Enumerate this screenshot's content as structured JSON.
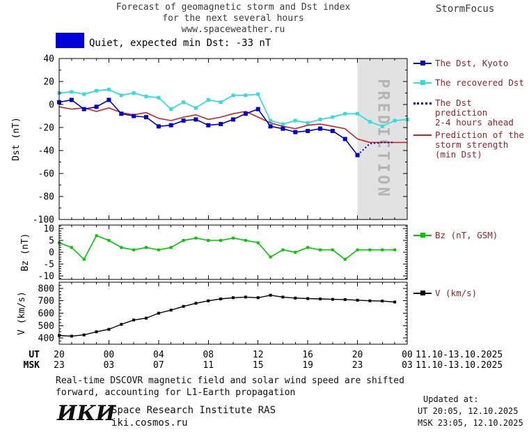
{
  "header": {
    "title_line1": "Forecast of geomagnetic storm and Dst index",
    "title_line2": "for the next several hours",
    "title_line3": "www.spaceweather.ru",
    "brand": "StormFocus"
  },
  "status": {
    "swatch_color": "#0000dd",
    "label": "Quiet, expected min Dst: -33 nT"
  },
  "chart_data": {
    "type": "line",
    "colors": {
      "band": "#e2e2e2",
      "band_text": "#b4b4b4",
      "axis": "#000000"
    },
    "x_axis": {
      "range": [
        0,
        28
      ],
      "ticks": [
        0,
        4,
        8,
        12,
        16,
        20,
        24,
        28
      ],
      "rows": [
        {
          "label": "UT",
          "values": [
            "20",
            "00",
            "04",
            "08",
            "12",
            "16",
            "20",
            "00"
          ],
          "date_range": "11.10-13.10.2025"
        },
        {
          "label": "MSK",
          "values": [
            "23",
            "03",
            "07",
            "11",
            "15",
            "19",
            "23",
            "03"
          ],
          "date_range": "11.10-13.10.2025"
        }
      ]
    },
    "panels": [
      {
        "ylabel": "Dst (nT)",
        "ylim": [
          -100,
          40
        ],
        "yticks": [
          40,
          20,
          0,
          -20,
          -40,
          -60,
          -80,
          -100
        ],
        "yminor": 10,
        "prediction_band": {
          "x": [
            24,
            28
          ],
          "label": "PREDICTION"
        },
        "series": [
          {
            "name": "The recovered Dst",
            "color": "#33dddd",
            "width": 1.8,
            "marker": "square",
            "marker_size": 5,
            "x": [
              0,
              1,
              2,
              3,
              4,
              5,
              6,
              7,
              8,
              9,
              10,
              11,
              12,
              13,
              14,
              15,
              16,
              17,
              18,
              19,
              20,
              21,
              22,
              23,
              24,
              25,
              26,
              27,
              28
            ],
            "y": [
              10,
              11,
              9,
              12,
              13,
              8,
              10,
              7,
              6,
              -4,
              2,
              -3,
              4,
              2,
              8,
              8,
              9,
              -14,
              -17,
              -14,
              -16,
              -13,
              -11,
              -8,
              -8,
              -15,
              -19,
              -14,
              -13
            ]
          },
          {
            "name": "Prediction of the storm strength (min Dst)",
            "color": "#cc2222",
            "width": 1.6,
            "x": [
              0,
              1,
              2,
              3,
              4,
              5,
              6,
              7,
              8,
              9,
              10,
              11,
              12,
              13,
              14,
              15,
              16,
              17,
              18,
              19,
              20,
              21,
              22,
              23,
              24,
              25,
              26,
              27,
              28
            ],
            "y": [
              -2,
              -4,
              -3,
              -6,
              -3,
              -7,
              -9,
              -7,
              -12,
              -14,
              -11,
              -9,
              -13,
              -11,
              -8,
              -6,
              -11,
              -16,
              -19,
              -21,
              -18,
              -17,
              -19,
              -21,
              -30,
              -33,
              -33,
              -33,
              -33
            ]
          },
          {
            "name": "The Dst, Kyoto",
            "color": "#0000cc",
            "width": 1.6,
            "marker": "square",
            "marker_size": 6,
            "x": [
              0,
              1,
              2,
              3,
              4,
              5,
              6,
              7,
              8,
              9,
              10,
              11,
              12,
              13,
              14,
              15,
              16,
              17,
              18,
              19,
              20,
              21,
              22,
              23,
              24
            ],
            "y": [
              2,
              4,
              -4,
              -2,
              4,
              -8,
              -10,
              -11,
              -19,
              -18,
              -14,
              -13,
              -18,
              -17,
              -13,
              -8,
              -4,
              -19,
              -21,
              -24,
              -23,
              -21,
              -23,
              -30,
              -44
            ]
          },
          {
            "name": "The Dst prediction 2-4 hours ahead",
            "color": "#0000cc",
            "line": "dotted",
            "x": [
              24,
              25,
              26,
              27
            ],
            "y": [
              -44,
              -34,
              -33,
              -33
            ]
          }
        ]
      },
      {
        "ylabel": "Bz (nT)",
        "ylim": [
          -11.5,
          11.5
        ],
        "yticks": [
          10,
          5,
          0,
          -5,
          -10
        ],
        "yminor": 1,
        "series": [
          {
            "name": "Bz (nT, GSM)",
            "color": "#00c800",
            "width": 1.6,
            "marker": "square",
            "marker_size": 4,
            "x": [
              0,
              1,
              2,
              3,
              4,
              5,
              6,
              7,
              8,
              9,
              10,
              11,
              12,
              13,
              14,
              15,
              16,
              17,
              18,
              19,
              20,
              21,
              22,
              23,
              24,
              25,
              26,
              27
            ],
            "y": [
              4,
              2,
              -3,
              7,
              5,
              2,
              1,
              2,
              1,
              2,
              5,
              6,
              5,
              5,
              6,
              5,
              4,
              -2,
              1,
              0,
              2,
              1,
              1,
              -3,
              1,
              1,
              1,
              1
            ]
          }
        ]
      },
      {
        "ylabel": "V (km/s)",
        "ylim": [
          350,
          850
        ],
        "yticks": [
          800,
          700,
          600,
          500,
          400
        ],
        "yminor": 25,
        "series": [
          {
            "name": "V (km/s)",
            "color": "#000000",
            "width": 1.4,
            "marker": "square",
            "marker_size": 4,
            "x": [
              0,
              1,
              2,
              3,
              4,
              5,
              6,
              7,
              8,
              9,
              10,
              11,
              12,
              13,
              14,
              15,
              16,
              17,
              18,
              19,
              20,
              21,
              22,
              23,
              24,
              25,
              26,
              27
            ],
            "y": [
              420,
              415,
              425,
              450,
              470,
              510,
              545,
              560,
              600,
              625,
              655,
              680,
              700,
              715,
              725,
              730,
              725,
              745,
              730,
              722,
              718,
              715,
              712,
              710,
              705,
              700,
              698,
              690
            ]
          }
        ]
      }
    ]
  },
  "legend": [
    {
      "label": "The Dst, Kyoto",
      "color": "#0000cc",
      "marker": "square",
      "line": "solid"
    },
    {
      "label": "The recovered Dst",
      "color": "#33dddd",
      "marker": "square",
      "line": "solid"
    },
    {
      "label": "The Dst prediction\n2-4 hours ahead",
      "color": "#0000cc",
      "marker": "none",
      "line": "dotted"
    },
    {
      "label": "Prediction of the\nstorm strength\n(min Dst)",
      "color": "#cc2222",
      "marker": "none",
      "line": "solid"
    },
    {
      "label": "Bz (nT, GSM)",
      "color": "#00c800",
      "marker": "square",
      "line": "solid"
    },
    {
      "label": "V (km/s)",
      "color": "#000000",
      "marker": "square",
      "line": "solid"
    }
  ],
  "footnote": {
    "line1": "Real-time DSCOVR magnetic field and solar wind speed are shifted",
    "line2": "forward, accounting for L1-Earth propagation"
  },
  "updated": {
    "label": "Updated at:",
    "ut": "UT  20:05, 12.10.2025",
    "msk": "MSK 23:05, 12.10.2025"
  },
  "branding": {
    "logo": "ИКИ",
    "institute": "Space Research Institute RAS",
    "site": "iki.cosmos.ru"
  }
}
